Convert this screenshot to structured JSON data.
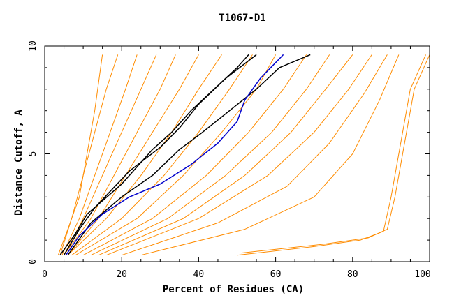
{
  "chart_data": {
    "type": "line",
    "title": "T1067-D1",
    "xlabel": "Percent of Residues (CA)",
    "ylabel": "Distance Cutoff, A",
    "xlim": [
      0,
      100
    ],
    "ylim": [
      0,
      10
    ],
    "xticks": [
      "0",
      "20",
      "40",
      "60",
      "80",
      "100"
    ],
    "yticks": [
      "0",
      "5",
      "10"
    ],
    "background_color": "#ffffff",
    "colors": {
      "background_models": "#ff8c00",
      "highlighted": "#000000",
      "reference": "#0000cc"
    },
    "series": [
      {
        "group": "background",
        "color": "#ff8c00",
        "points": [
          [
            3.5,
            0.3
          ],
          [
            6,
            1.5
          ],
          [
            9,
            3
          ],
          [
            11,
            5
          ],
          [
            13,
            7
          ],
          [
            15,
            9.6
          ]
        ]
      },
      {
        "group": "background",
        "color": "#ff8c00",
        "points": [
          [
            4,
            0.3
          ],
          [
            7,
            2
          ],
          [
            10,
            4
          ],
          [
            13,
            6
          ],
          [
            16,
            8
          ],
          [
            19,
            9.6
          ]
        ]
      },
      {
        "group": "background",
        "color": "#ff8c00",
        "points": [
          [
            4.5,
            0.3
          ],
          [
            9,
            2
          ],
          [
            13,
            4
          ],
          [
            17,
            6
          ],
          [
            21,
            8
          ],
          [
            24,
            9.6
          ]
        ]
      },
      {
        "group": "background",
        "color": "#ff8c00",
        "points": [
          [
            5,
            0.3
          ],
          [
            10,
            2
          ],
          [
            15,
            4
          ],
          [
            20,
            6
          ],
          [
            25,
            8
          ],
          [
            29,
            9.6
          ]
        ]
      },
      {
        "group": "background",
        "color": "#ff8c00",
        "points": [
          [
            5,
            0.3
          ],
          [
            12,
            2
          ],
          [
            18,
            4
          ],
          [
            24,
            6
          ],
          [
            30,
            8
          ],
          [
            34,
            9.6
          ]
        ]
      },
      {
        "group": "background",
        "color": "#ff8c00",
        "points": [
          [
            6,
            0.3
          ],
          [
            14,
            2
          ],
          [
            21,
            4
          ],
          [
            28,
            6
          ],
          [
            35,
            8
          ],
          [
            40,
            9.6
          ]
        ]
      },
      {
        "group": "background",
        "color": "#ff8c00",
        "points": [
          [
            6,
            0.3
          ],
          [
            16,
            2
          ],
          [
            25,
            4
          ],
          [
            33,
            6
          ],
          [
            40,
            8
          ],
          [
            46,
            9.6
          ]
        ]
      },
      {
        "group": "background",
        "color": "#ff8c00",
        "points": [
          [
            7,
            0.3
          ],
          [
            20,
            2
          ],
          [
            31,
            4
          ],
          [
            40,
            6
          ],
          [
            48,
            8
          ],
          [
            54,
            9.6
          ]
        ]
      },
      {
        "group": "background",
        "color": "#ff8c00",
        "points": [
          [
            8,
            0.3
          ],
          [
            24,
            2
          ],
          [
            36,
            4
          ],
          [
            46,
            6
          ],
          [
            55,
            8
          ],
          [
            60,
            9.6
          ]
        ]
      },
      {
        "group": "background",
        "color": "#ff8c00",
        "points": [
          [
            10,
            0.3
          ],
          [
            28,
            2
          ],
          [
            42,
            4
          ],
          [
            53,
            6
          ],
          [
            62,
            8
          ],
          [
            68,
            9.6
          ]
        ]
      },
      {
        "group": "background",
        "color": "#ff8c00",
        "points": [
          [
            12,
            0.3
          ],
          [
            32,
            2
          ],
          [
            47,
            4
          ],
          [
            59,
            6
          ],
          [
            68,
            8
          ],
          [
            74,
            9.6
          ]
        ]
      },
      {
        "group": "background",
        "color": "#ff8c00",
        "points": [
          [
            14,
            0.3
          ],
          [
            36,
            2
          ],
          [
            52,
            4
          ],
          [
            64,
            6
          ],
          [
            73,
            8
          ],
          [
            80,
            9.6
          ]
        ]
      },
      {
        "group": "background",
        "color": "#ff8c00",
        "points": [
          [
            16,
            0.3
          ],
          [
            40,
            2
          ],
          [
            58,
            4
          ],
          [
            70,
            6
          ],
          [
            79,
            8
          ],
          [
            85,
            9.6
          ]
        ]
      },
      {
        "group": "background",
        "color": "#ff8c00",
        "points": [
          [
            20,
            0.3
          ],
          [
            45,
            1.8
          ],
          [
            63,
            3.5
          ],
          [
            74,
            5.5
          ],
          [
            83,
            7.8
          ],
          [
            89,
            9.6
          ]
        ]
      },
      {
        "group": "background",
        "color": "#ff8c00",
        "points": [
          [
            25,
            0.3
          ],
          [
            52,
            1.5
          ],
          [
            70,
            3
          ],
          [
            80,
            5
          ],
          [
            87,
            7.5
          ],
          [
            92,
            9.6
          ]
        ]
      },
      {
        "group": "background",
        "color": "#ff8c00",
        "points": [
          [
            50,
            0.3
          ],
          [
            70,
            0.7
          ],
          [
            82,
            1
          ],
          [
            88,
            1.4
          ],
          [
            90,
            3
          ],
          [
            92,
            5
          ],
          [
            95,
            8
          ],
          [
            99,
            9.6
          ]
        ]
      },
      {
        "group": "background",
        "color": "#ff8c00",
        "points": [
          [
            51,
            0.4
          ],
          [
            72,
            0.8
          ],
          [
            84,
            1.1
          ],
          [
            89,
            1.5
          ],
          [
            91,
            3
          ],
          [
            93,
            5
          ],
          [
            96,
            8
          ],
          [
            100,
            9.6
          ]
        ]
      },
      {
        "group": "highlighted",
        "color": "#000000",
        "points": [
          [
            4,
            0.3
          ],
          [
            8,
            1.3
          ],
          [
            11,
            2.2
          ],
          [
            20,
            3.6
          ],
          [
            28,
            5.2
          ],
          [
            33,
            6
          ],
          [
            38,
            7
          ],
          [
            44,
            8
          ],
          [
            50,
            9
          ],
          [
            53,
            9.6
          ]
        ]
      },
      {
        "group": "highlighted",
        "color": "#000000",
        "points": [
          [
            5,
            0.3
          ],
          [
            9,
            1.5
          ],
          [
            13,
            2.5
          ],
          [
            22,
            4.2
          ],
          [
            30,
            5.3
          ],
          [
            35,
            6.2
          ],
          [
            40,
            7.3
          ],
          [
            47,
            8.5
          ],
          [
            55,
            9.6
          ]
        ]
      },
      {
        "group": "highlighted",
        "color": "#000000",
        "points": [
          [
            6,
            0.3
          ],
          [
            12,
            1.8
          ],
          [
            20,
            3
          ],
          [
            28,
            4
          ],
          [
            35,
            5.2
          ],
          [
            41,
            6
          ],
          [
            48,
            7
          ],
          [
            55,
            8
          ],
          [
            61,
            9
          ],
          [
            69,
            9.6
          ]
        ]
      },
      {
        "group": "reference",
        "color": "#0000cc",
        "points": [
          [
            5.5,
            0.3
          ],
          [
            9,
            1.2
          ],
          [
            15,
            2.2
          ],
          [
            22,
            3
          ],
          [
            30,
            3.6
          ],
          [
            38,
            4.5
          ],
          [
            45,
            5.5
          ],
          [
            50,
            6.5
          ],
          [
            52,
            7.5
          ],
          [
            56,
            8.5
          ],
          [
            62,
            9.6
          ]
        ]
      }
    ]
  }
}
